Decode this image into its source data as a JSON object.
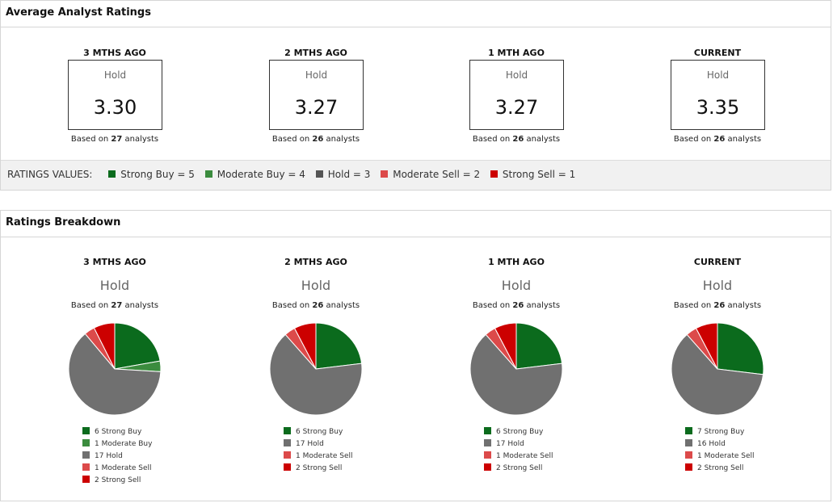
{
  "colors": {
    "strong_buy": "#0b6b1d",
    "moderate_buy": "#3b8c3e",
    "hold": "#707070",
    "moderate_sell": "#dc4a4a",
    "strong_sell": "#cc0000"
  },
  "average_panel": {
    "title": "Average Analyst Ratings",
    "based_prefix": "Based on",
    "based_suffix": "analysts",
    "periods": [
      {
        "label": "3 MTHS AGO",
        "rating": "Hold",
        "value": "3.30",
        "analysts": "27"
      },
      {
        "label": "2 MTHS AGO",
        "rating": "Hold",
        "value": "3.27",
        "analysts": "26"
      },
      {
        "label": "1 MTH AGO",
        "rating": "Hold",
        "value": "3.27",
        "analysts": "26"
      },
      {
        "label": "CURRENT",
        "rating": "Hold",
        "value": "3.35",
        "analysts": "26"
      }
    ],
    "ratings_values": {
      "label": "RATINGS VALUES:",
      "items": [
        {
          "text": "Strong Buy = 5",
          "color": "#0b6b1d"
        },
        {
          "text": "Moderate Buy = 4",
          "color": "#3b8c3e"
        },
        {
          "text": "Hold = 3",
          "color": "#555555"
        },
        {
          "text": "Moderate Sell = 2",
          "color": "#dc4a4a"
        },
        {
          "text": "Strong Sell = 1",
          "color": "#cc0000"
        }
      ]
    }
  },
  "breakdown_panel": {
    "title": "Ratings Breakdown",
    "based_prefix": "Based on",
    "based_suffix": "analysts"
  },
  "chart_data": [
    {
      "type": "pie",
      "title": "3 MTHS AGO",
      "subtitle": "Hold",
      "analysts": "27",
      "categories": [
        "Strong Buy",
        "Moderate Buy",
        "Hold",
        "Moderate Sell",
        "Strong Sell"
      ],
      "values": [
        6,
        1,
        17,
        1,
        2
      ],
      "legend": [
        "6 Strong Buy",
        "1 Moderate Buy",
        "17 Hold",
        "1 Moderate Sell",
        "2 Strong Sell"
      ]
    },
    {
      "type": "pie",
      "title": "2 MTHS AGO",
      "subtitle": "Hold",
      "analysts": "26",
      "categories": [
        "Strong Buy",
        "Hold",
        "Moderate Sell",
        "Strong Sell"
      ],
      "values": [
        6,
        17,
        1,
        2
      ],
      "legend": [
        "6 Strong Buy",
        "17 Hold",
        "1 Moderate Sell",
        "2 Strong Sell"
      ]
    },
    {
      "type": "pie",
      "title": "1 MTH AGO",
      "subtitle": "Hold",
      "analysts": "26",
      "categories": [
        "Strong Buy",
        "Hold",
        "Moderate Sell",
        "Strong Sell"
      ],
      "values": [
        6,
        17,
        1,
        2
      ],
      "legend": [
        "6 Strong Buy",
        "17 Hold",
        "1 Moderate Sell",
        "2 Strong Sell"
      ]
    },
    {
      "type": "pie",
      "title": "CURRENT",
      "subtitle": "Hold",
      "analysts": "26",
      "categories": [
        "Strong Buy",
        "Hold",
        "Moderate Sell",
        "Strong Sell"
      ],
      "values": [
        7,
        16,
        1,
        2
      ],
      "legend": [
        "7 Strong Buy",
        "16 Hold",
        "1 Moderate Sell",
        "2 Strong Sell"
      ]
    }
  ]
}
